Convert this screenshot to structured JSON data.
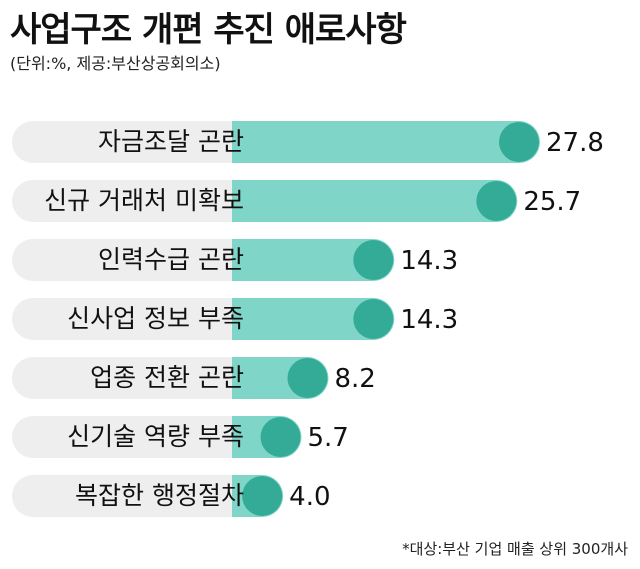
{
  "title": "사업구조 개편 추진 애로사항",
  "subtitle": "(단위:%, 제공:부산상공회의소)",
  "footnote": "*대상:부산 기업 매출 상위 300개사",
  "colors": {
    "track": "#eeeeee",
    "bar": "#7fd6c8",
    "end_dot": "#34ab97",
    "text": "#111111"
  },
  "chart_data": {
    "type": "bar",
    "orientation": "horizontal",
    "unit": "%",
    "categories": [
      "자금조달 곤란",
      "신규 거래처 미확보",
      "인력수급 곤란",
      "신사업 정보 부족",
      "업종 전환 곤란",
      "신기술 역량 부족",
      "복잡한 행정절차"
    ],
    "values": [
      27.8,
      25.7,
      14.3,
      14.3,
      8.2,
      5.7,
      4.0
    ],
    "value_labels": [
      "27.8",
      "25.7",
      "14.3",
      "14.3",
      "8.2",
      "5.7",
      "4.0"
    ],
    "xlim": [
      0,
      27.8
    ],
    "grid": false,
    "legend": "none"
  }
}
